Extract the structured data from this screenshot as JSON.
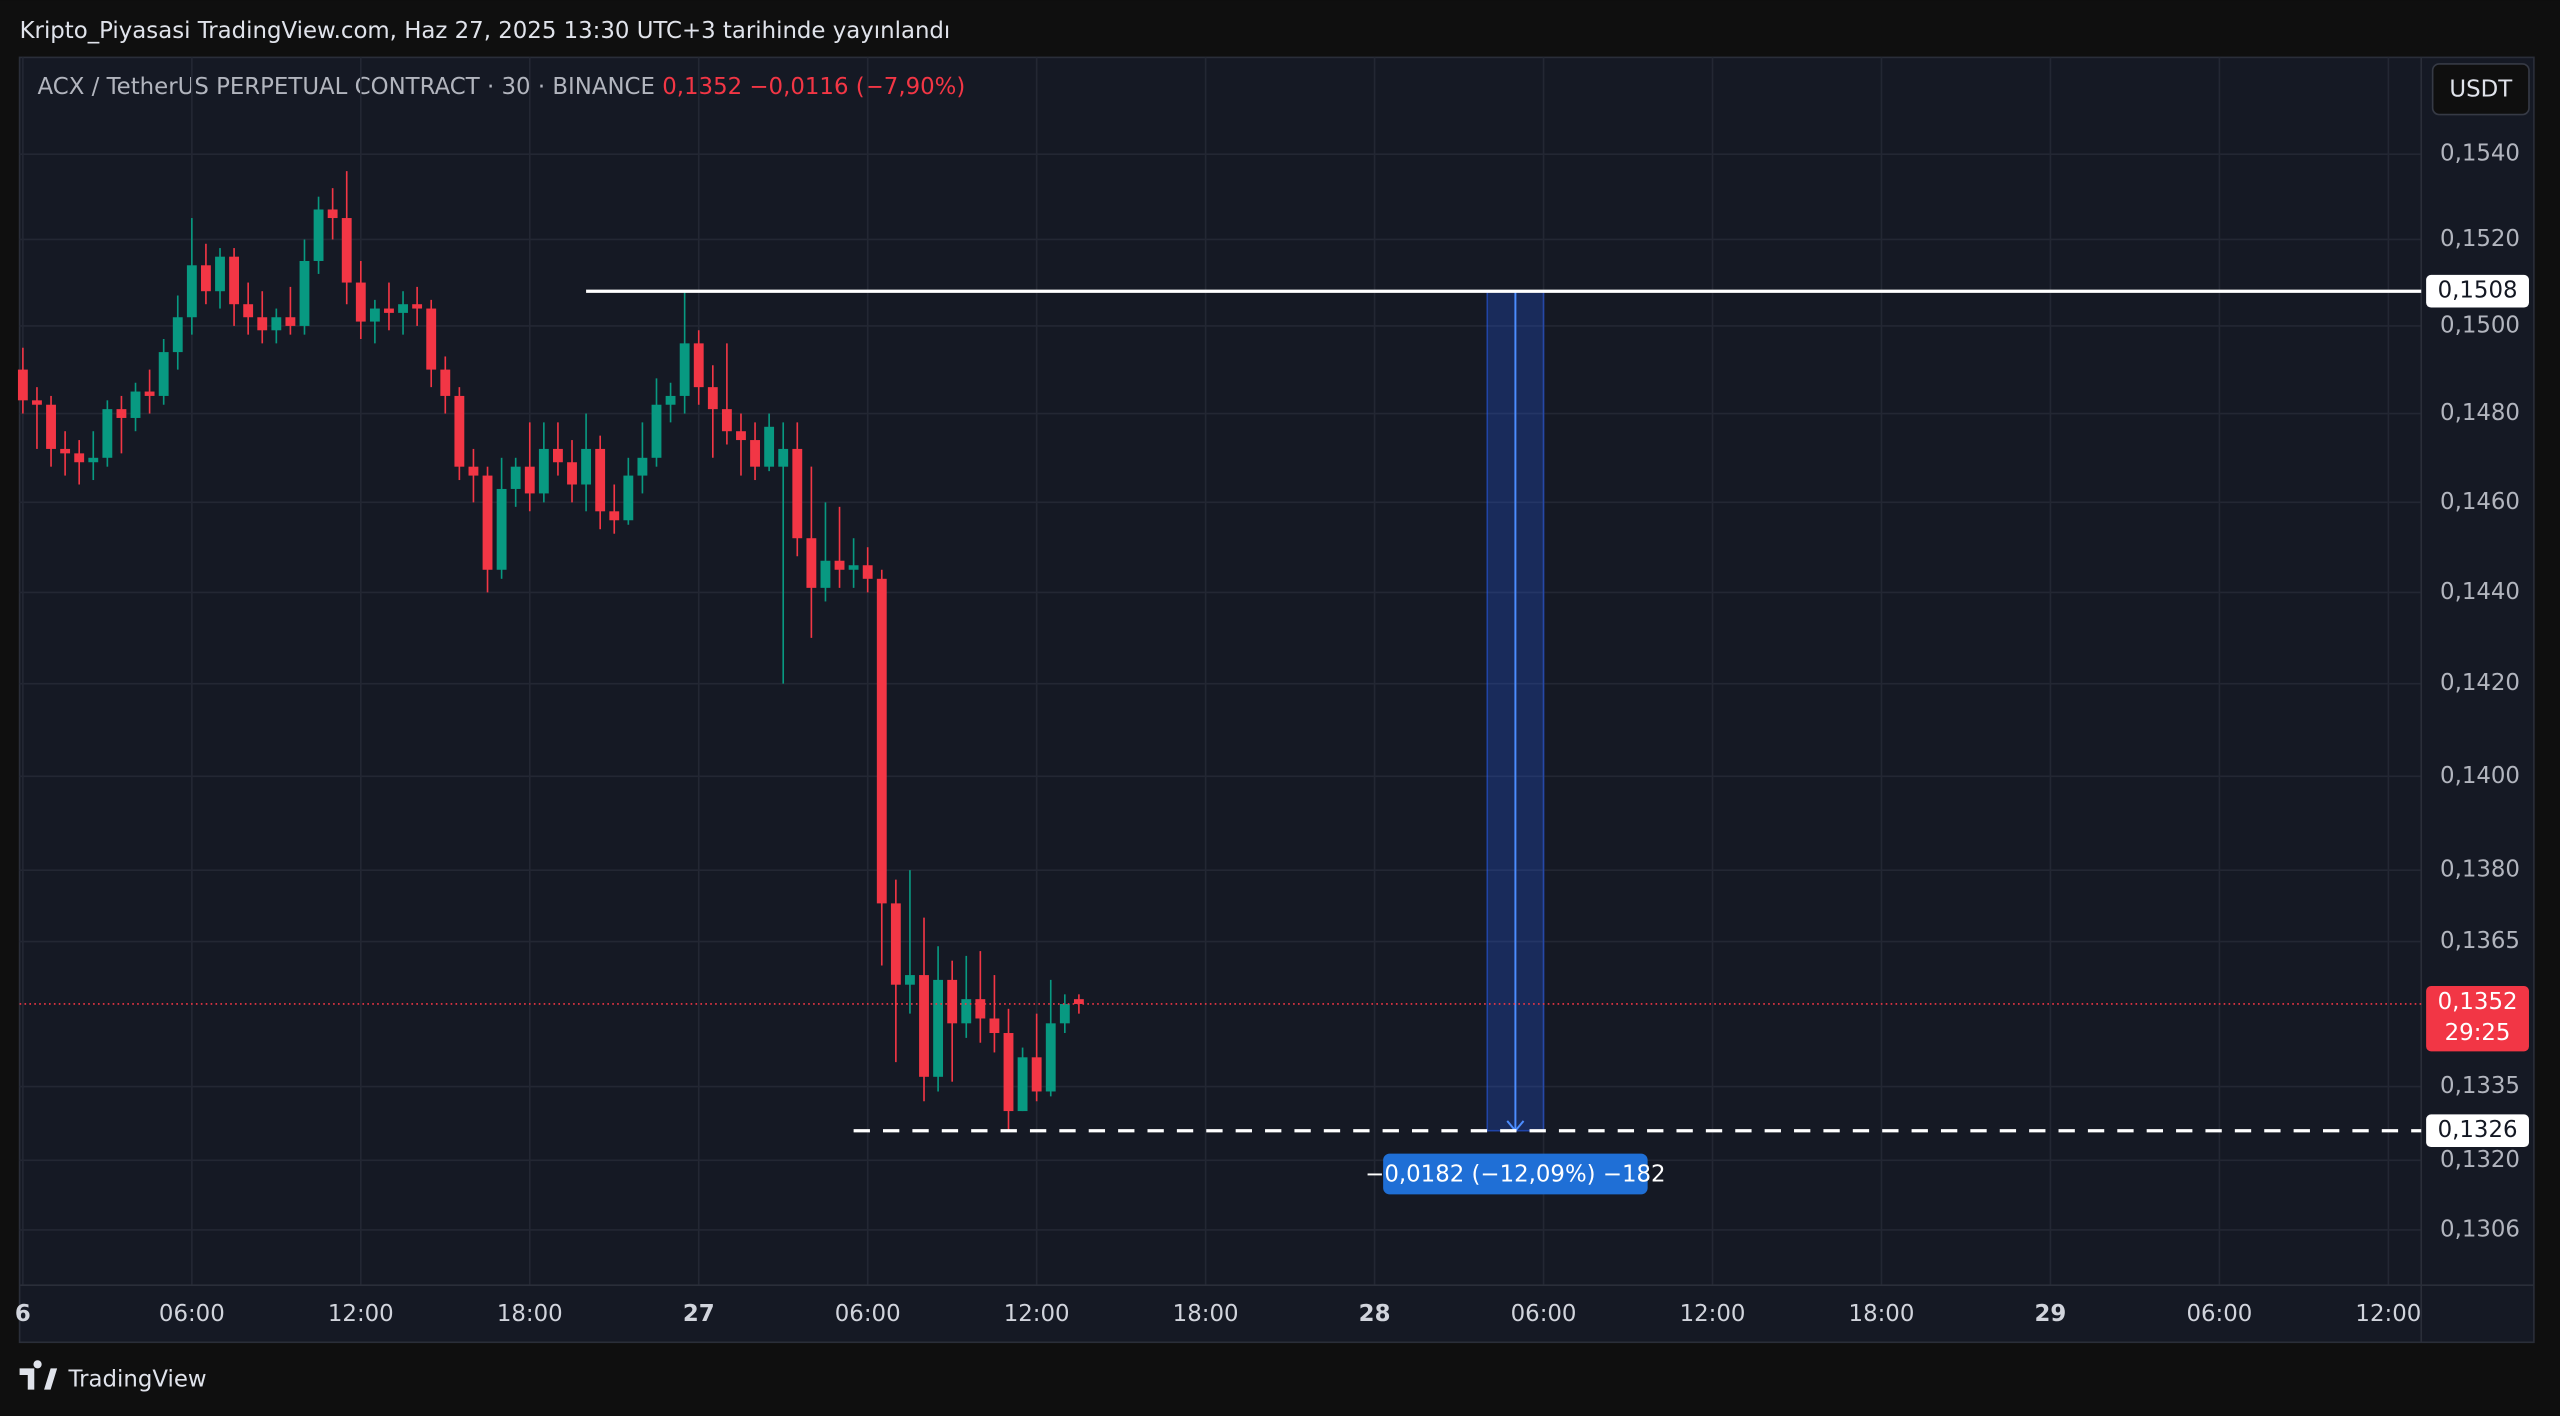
{
  "header": {
    "title": "Kripto_Piyasasi TradingView.com, Haz 27, 2025 13:30 UTC+3 tarihinde yayınlandı"
  },
  "chart_data": {
    "type": "candlestick",
    "symbol": "ACX / TetherUS PERPETUAL CONTRACT · 30 · BINANCE",
    "last_price": "0,1352",
    "change": "−0,0116 (−7,90%)",
    "currency": "USDT",
    "log_scale": true,
    "grid": true,
    "up_color": "#089981",
    "down_color": "#f23645",
    "x": [
      "2025-06-26T00:00",
      "2025-06-26T00:30",
      "2025-06-26T01:00",
      "2025-06-26T01:30",
      "2025-06-26T02:00",
      "2025-06-26T02:30",
      "2025-06-26T03:00",
      "2025-06-26T03:30",
      "2025-06-26T04:00",
      "2025-06-26T04:30",
      "2025-06-26T05:00",
      "2025-06-26T05:30",
      "2025-06-26T06:00",
      "2025-06-26T06:30",
      "2025-06-26T07:00",
      "2025-06-26T07:30",
      "2025-06-26T08:00",
      "2025-06-26T08:30",
      "2025-06-26T09:00",
      "2025-06-26T09:30",
      "2025-06-26T10:00",
      "2025-06-26T10:30",
      "2025-06-26T11:00",
      "2025-06-26T11:30",
      "2025-06-26T12:00",
      "2025-06-26T12:30",
      "2025-06-26T13:00",
      "2025-06-26T13:30",
      "2025-06-26T14:00",
      "2025-06-26T14:30",
      "2025-06-26T15:00",
      "2025-06-26T15:30",
      "2025-06-26T16:00",
      "2025-06-26T16:30",
      "2025-06-26T17:00",
      "2025-06-26T17:30",
      "2025-06-26T18:00",
      "2025-06-26T18:30",
      "2025-06-26T19:00",
      "2025-06-26T19:30",
      "2025-06-26T20:00",
      "2025-06-26T20:30",
      "2025-06-26T21:00",
      "2025-06-26T21:30",
      "2025-06-26T22:00",
      "2025-06-26T22:30",
      "2025-06-26T23:00",
      "2025-06-26T23:30",
      "2025-06-27T00:00",
      "2025-06-27T00:30",
      "2025-06-27T01:00",
      "2025-06-27T01:30",
      "2025-06-27T02:00",
      "2025-06-27T02:30",
      "2025-06-27T03:00",
      "2025-06-27T03:30",
      "2025-06-27T04:00",
      "2025-06-27T04:30",
      "2025-06-27T05:00",
      "2025-06-27T05:30",
      "2025-06-27T06:00",
      "2025-06-27T06:30",
      "2025-06-27T07:00",
      "2025-06-27T07:30",
      "2025-06-27T08:00",
      "2025-06-27T08:30",
      "2025-06-27T09:00",
      "2025-06-27T09:30",
      "2025-06-27T10:00",
      "2025-06-27T10:30",
      "2025-06-27T11:00",
      "2025-06-27T11:30",
      "2025-06-27T12:00",
      "2025-06-27T12:30",
      "2025-06-27T13:00",
      "2025-06-27T13:30"
    ],
    "open": [
      0.149,
      0.1483,
      0.1482,
      0.1472,
      0.1471,
      0.1469,
      0.147,
      0.1481,
      0.1479,
      0.1485,
      0.1484,
      0.1494,
      0.1502,
      0.1514,
      0.1508,
      0.1516,
      0.1505,
      0.1502,
      0.1499,
      0.1502,
      0.15,
      0.1515,
      0.1527,
      0.1525,
      0.151,
      0.1501,
      0.1504,
      0.1503,
      0.1505,
      0.1504,
      0.149,
      0.1484,
      0.1468,
      0.1466,
      0.1445,
      0.1463,
      0.1468,
      0.1462,
      0.1472,
      0.1469,
      0.1464,
      0.1472,
      0.1458,
      0.1456,
      0.1466,
      0.147,
      0.1482,
      0.1484,
      0.1496,
      0.1486,
      0.1481,
      0.1476,
      0.1474,
      0.1468,
      0.1468,
      0.1472,
      0.1452,
      0.1441,
      0.1447,
      0.1445,
      0.1446,
      0.1443,
      0.1373,
      0.1356,
      0.1358,
      0.1337,
      0.1357,
      0.1348,
      0.1353,
      0.1349,
      0.1346,
      0.133,
      0.1341,
      0.1334,
      0.1348,
      0.1353
    ],
    "high": [
      0.1495,
      0.1486,
      0.1484,
      0.1476,
      0.1474,
      0.1476,
      0.1483,
      0.1484,
      0.1487,
      0.149,
      0.1497,
      0.1507,
      0.1525,
      0.1519,
      0.1518,
      0.1518,
      0.151,
      0.1508,
      0.1504,
      0.1509,
      0.152,
      0.153,
      0.1532,
      0.1536,
      0.1515,
      0.1506,
      0.151,
      0.1508,
      0.1509,
      0.1506,
      0.1493,
      0.1486,
      0.1472,
      0.1468,
      0.147,
      0.147,
      0.1478,
      0.1478,
      0.1478,
      0.1474,
      0.148,
      0.1475,
      0.1464,
      0.147,
      0.1478,
      0.1488,
      0.1487,
      0.1508,
      0.1499,
      0.1491,
      0.1496,
      0.148,
      0.1478,
      0.148,
      0.1478,
      0.1478,
      0.1468,
      0.146,
      0.1459,
      0.1452,
      0.145,
      0.1445,
      0.1378,
      0.138,
      0.137,
      0.1364,
      0.1361,
      0.1362,
      0.1363,
      0.1358,
      0.1351,
      0.1343,
      0.135,
      0.1357,
      0.1354,
      0.1354
    ],
    "low": [
      0.148,
      0.1472,
      0.1468,
      0.1466,
      0.1464,
      0.1465,
      0.1468,
      0.1471,
      0.1476,
      0.148,
      0.1482,
      0.149,
      0.1498,
      0.1505,
      0.1504,
      0.15,
      0.1498,
      0.1496,
      0.1496,
      0.1498,
      0.1498,
      0.1512,
      0.152,
      0.1505,
      0.1497,
      0.1496,
      0.1499,
      0.1498,
      0.15,
      0.1486,
      0.148,
      0.1465,
      0.146,
      0.144,
      0.1443,
      0.1459,
      0.1458,
      0.146,
      0.1466,
      0.146,
      0.1458,
      0.1454,
      0.1453,
      0.1455,
      0.1462,
      0.1468,
      0.1478,
      0.148,
      0.1482,
      0.147,
      0.1473,
      0.1466,
      0.1465,
      0.1467,
      0.142,
      0.1448,
      0.143,
      0.1438,
      0.1441,
      0.1441,
      0.144,
      0.136,
      0.134,
      0.135,
      0.1332,
      0.1334,
      0.1336,
      0.1345,
      0.1344,
      0.1342,
      0.1326,
      0.133,
      0.1332,
      0.1333,
      0.1346,
      0.135
    ],
    "close": [
      0.1483,
      0.1482,
      0.1472,
      0.1471,
      0.1469,
      0.147,
      0.1481,
      0.1479,
      0.1485,
      0.1484,
      0.1494,
      0.1502,
      0.1514,
      0.1508,
      0.1516,
      0.1505,
      0.1502,
      0.1499,
      0.1502,
      0.15,
      0.1515,
      0.1527,
      0.1525,
      0.151,
      0.1501,
      0.1504,
      0.1503,
      0.1505,
      0.1504,
      0.149,
      0.1484,
      0.1468,
      0.1466,
      0.1445,
      0.1463,
      0.1468,
      0.1462,
      0.1472,
      0.1469,
      0.1464,
      0.1472,
      0.1458,
      0.1456,
      0.1466,
      0.147,
      0.1482,
      0.1484,
      0.1496,
      0.1486,
      0.1481,
      0.1476,
      0.1474,
      0.1468,
      0.1477,
      0.1472,
      0.1452,
      0.1441,
      0.1447,
      0.1445,
      0.1446,
      0.1443,
      0.1373,
      0.1356,
      0.1358,
      0.1337,
      0.1357,
      0.1348,
      0.1353,
      0.1349,
      0.1346,
      0.133,
      0.1341,
      0.1334,
      0.1348,
      0.1352,
      0.1352
    ],
    "xlim": [
      "2025-06-25T23:53",
      "2025-06-29T13:10"
    ],
    "ylim": [
      0.1295,
      0.1563
    ],
    "xticks": [
      {
        "value": "2025-06-26T00:00",
        "label": "6"
      },
      {
        "value": "2025-06-26T06:00",
        "label": "06:00"
      },
      {
        "value": "2025-06-26T12:00",
        "label": "12:00"
      },
      {
        "value": "2025-06-26T18:00",
        "label": "18:00"
      },
      {
        "value": "2025-06-27T00:00",
        "label": "27"
      },
      {
        "value": "2025-06-27T06:00",
        "label": "06:00"
      },
      {
        "value": "2025-06-27T12:00",
        "label": "12:00"
      },
      {
        "value": "2025-06-27T18:00",
        "label": "18:00"
      },
      {
        "value": "2025-06-28T00:00",
        "label": "28"
      },
      {
        "value": "2025-06-28T06:00",
        "label": "06:00"
      },
      {
        "value": "2025-06-28T12:00",
        "label": "12:00"
      },
      {
        "value": "2025-06-28T18:00",
        "label": "18:00"
      },
      {
        "value": "2025-06-29T00:00",
        "label": "29"
      },
      {
        "value": "2025-06-29T06:00",
        "label": "06:00"
      },
      {
        "value": "2025-06-29T12:00",
        "label": "12:00"
      }
    ],
    "yticks": [
      {
        "value": 0.154,
        "label": "0,1540"
      },
      {
        "value": 0.152,
        "label": "0,1520"
      },
      {
        "value": 0.15,
        "label": "0,1500"
      },
      {
        "value": 0.148,
        "label": "0,1480"
      },
      {
        "value": 0.146,
        "label": "0,1460"
      },
      {
        "value": 0.144,
        "label": "0,1440"
      },
      {
        "value": 0.142,
        "label": "0,1420"
      },
      {
        "value": 0.14,
        "label": "0,1400"
      },
      {
        "value": 0.138,
        "label": "0,1380"
      },
      {
        "value": 0.1365,
        "label": "0,1365"
      },
      {
        "value": 0.1335,
        "label": "0,1335"
      },
      {
        "value": 0.132,
        "label": "0,1320"
      },
      {
        "value": 0.1306,
        "label": "0,1306"
      }
    ],
    "price_line": {
      "value": 0.1352,
      "label": "0,1352",
      "countdown": "29:25",
      "color": "#f23645"
    },
    "lines": [
      {
        "from": "2025-06-26T20:00",
        "value": 0.1508,
        "label": "0,1508",
        "style": "solid"
      },
      {
        "from": "2025-06-27T05:30",
        "value": 0.1326,
        "label": "0,1326",
        "style": "dashed"
      }
    ],
    "measure": {
      "from": "2025-06-28T04:00",
      "to": "2025-06-28T06:00",
      "start": 0.1508,
      "end": 0.1326,
      "label": "−0,0182 (−12,09%) −182",
      "color": "#2962ff"
    }
  },
  "footer": {
    "brand": "TradingView"
  }
}
